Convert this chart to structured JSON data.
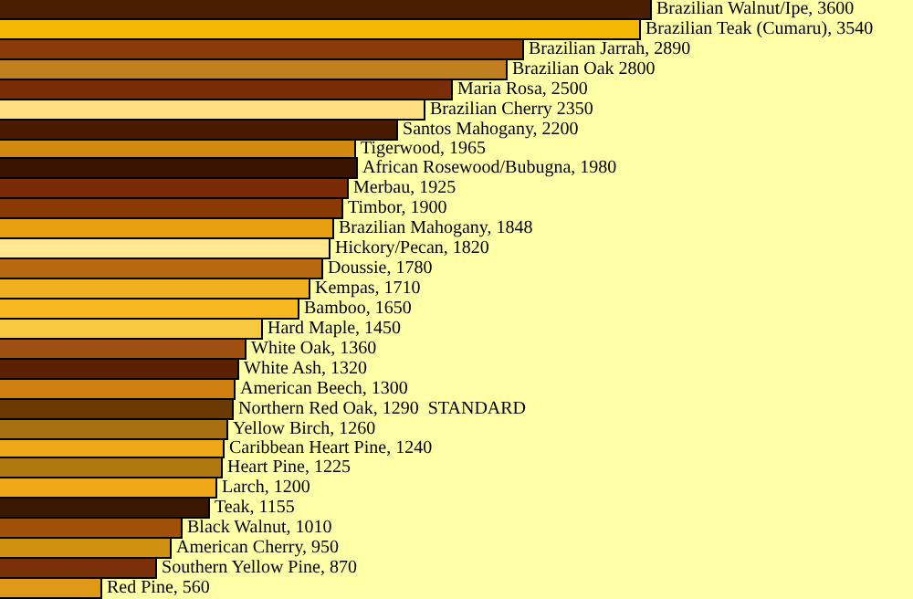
{
  "chart_data": {
    "type": "bar",
    "orientation": "horizontal",
    "categories": [
      null,
      null,
      null,
      null,
      null,
      null,
      null,
      null,
      null,
      null,
      null,
      null,
      null,
      null,
      null,
      null,
      null,
      null,
      null,
      null,
      null,
      null,
      null,
      null,
      null,
      null,
      null,
      null,
      null,
      null
    ],
    "values": [
      3600,
      3540,
      2890,
      2800,
      2500,
      2350,
      2200,
      1965,
      1980,
      1925,
      1900,
      1848,
      1820,
      1780,
      1710,
      1650,
      1450,
      1360,
      1320,
      1300,
      1290,
      1260,
      1240,
      1225,
      1200,
      1155,
      1010,
      950,
      870,
      560
    ],
    "value_labels": [
      "Brazilian Walnut/Ipe, 3600",
      "Brazilian Teak (Cumaru), 3540",
      "Brazilian Jarrah, 2890",
      "Brazilian Oak 2800",
      "Maria Rosa, 2500",
      "Brazilian Cherry 2350",
      "Santos Mahogany, 2200",
      "Tigerwood, 1965",
      "African Rosewood/Bubugna, 1980",
      "Merbau, 1925",
      "Timbor, 1900",
      "Brazilian Mahogany, 1848",
      "Hickory/Pecan, 1820",
      "Doussie, 1780",
      "Kempas, 1710",
      "Bamboo, 1650",
      "Hard Maple, 1450",
      "White Oak, 1360",
      "White Ash, 1320",
      "American Beech, 1300",
      "Northern Red Oak, 1290  STANDARD",
      "Yellow Birch, 1260",
      "Caribbean Heart Pine, 1240",
      "Heart Pine, 1225",
      "Larch, 1200",
      "Teak, 1155",
      "Black Walnut, 1010",
      "American Cherry, 950",
      "Southern Yellow Pine, 870",
      "Red Pine, 560"
    ],
    "colors": [
      "#4a1e00",
      "#f5b800",
      "#8b3a0a",
      "#c08020",
      "#7a2e08",
      "#ffe080",
      "#4a1a00",
      "#d08a10",
      "#3a1400",
      "#7a2a05",
      "#8a3a05",
      "#e8a010",
      "#ffe890",
      "#b86a10",
      "#f0b020",
      "#f8b820",
      "#f8c840",
      "#a05010",
      "#5a2000",
      "#d08010",
      "#6a3a00",
      "#a87010",
      "#f0a818",
      "#b07810",
      "#f0a818",
      "#3a1800",
      "#a05008",
      "#d09010",
      "#7a3008",
      "#e09818"
    ],
    "tick_labels": false,
    "grid": false,
    "legend": false
  }
}
